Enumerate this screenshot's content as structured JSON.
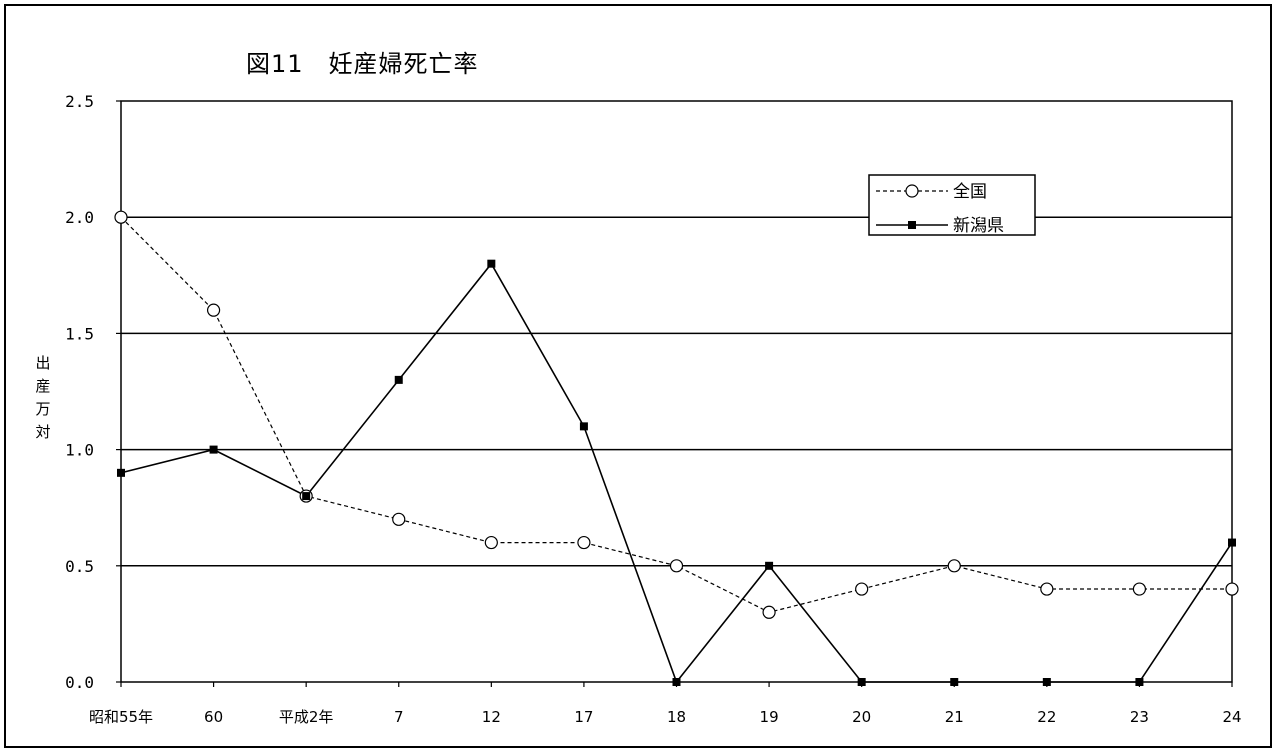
{
  "chart_data": {
    "type": "line",
    "title": "図11　妊産婦死亡率",
    "ylabel": "出産万対",
    "xlabel": "",
    "categories": [
      "昭和55年",
      "60",
      "平成2年",
      "7",
      "12",
      "17",
      "18",
      "19",
      "20",
      "21",
      "22",
      "23",
      "24"
    ],
    "ylim": [
      0,
      2.5
    ],
    "yticks": [
      "0.0",
      "0.5",
      "1.0",
      "1.5",
      "2.0",
      "2.5"
    ],
    "grid": true,
    "legend_position": "top-right",
    "series": [
      {
        "name": "全国",
        "values": [
          2.0,
          1.6,
          0.8,
          0.7,
          0.6,
          0.6,
          0.5,
          0.3,
          0.4,
          0.5,
          0.4,
          0.4,
          0.4
        ],
        "marker": "open-circle",
        "line": "dashed",
        "color": "#000000"
      },
      {
        "name": "新潟県",
        "values": [
          0.9,
          1.0,
          0.8,
          1.3,
          1.8,
          1.1,
          0.0,
          0.5,
          0.0,
          0.0,
          0.0,
          0.0,
          0.6
        ],
        "marker": "filled-square",
        "line": "solid",
        "color": "#000000"
      }
    ]
  }
}
